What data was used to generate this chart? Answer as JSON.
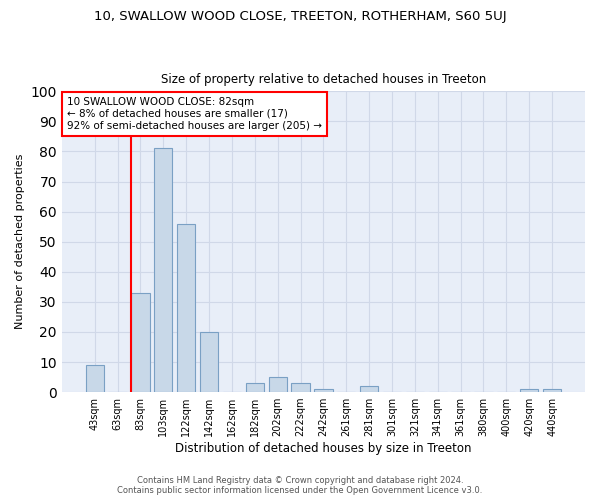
{
  "title1": "10, SWALLOW WOOD CLOSE, TREETON, ROTHERHAM, S60 5UJ",
  "title2": "Size of property relative to detached houses in Treeton",
  "xlabel": "Distribution of detached houses by size in Treeton",
  "ylabel": "Number of detached properties",
  "bin_labels": [
    "43sqm",
    "63sqm",
    "83sqm",
    "103sqm",
    "122sqm",
    "142sqm",
    "162sqm",
    "182sqm",
    "202sqm",
    "222sqm",
    "242sqm",
    "261sqm",
    "281sqm",
    "301sqm",
    "321sqm",
    "341sqm",
    "361sqm",
    "380sqm",
    "400sqm",
    "420sqm",
    "440sqm"
  ],
  "bar_values": [
    9,
    0,
    33,
    81,
    56,
    20,
    0,
    3,
    5,
    3,
    1,
    0,
    2,
    0,
    0,
    0,
    0,
    0,
    0,
    1,
    1
  ],
  "bar_color": "#c8d8e8",
  "bar_edge_color": "#7aa0c4",
  "vline_bin_index": 2,
  "annotation_text": "10 SWALLOW WOOD CLOSE: 82sqm\n← 8% of detached houses are smaller (17)\n92% of semi-detached houses are larger (205) →",
  "annotation_box_color": "white",
  "annotation_box_edge_color": "red",
  "vline_color": "red",
  "ylim": [
    0,
    100
  ],
  "yticks": [
    0,
    10,
    20,
    30,
    40,
    50,
    60,
    70,
    80,
    90,
    100
  ],
  "grid_color": "#d0d8e8",
  "background_color": "#e8eef8",
  "footer1": "Contains HM Land Registry data © Crown copyright and database right 2024.",
  "footer2": "Contains public sector information licensed under the Open Government Licence v3.0."
}
